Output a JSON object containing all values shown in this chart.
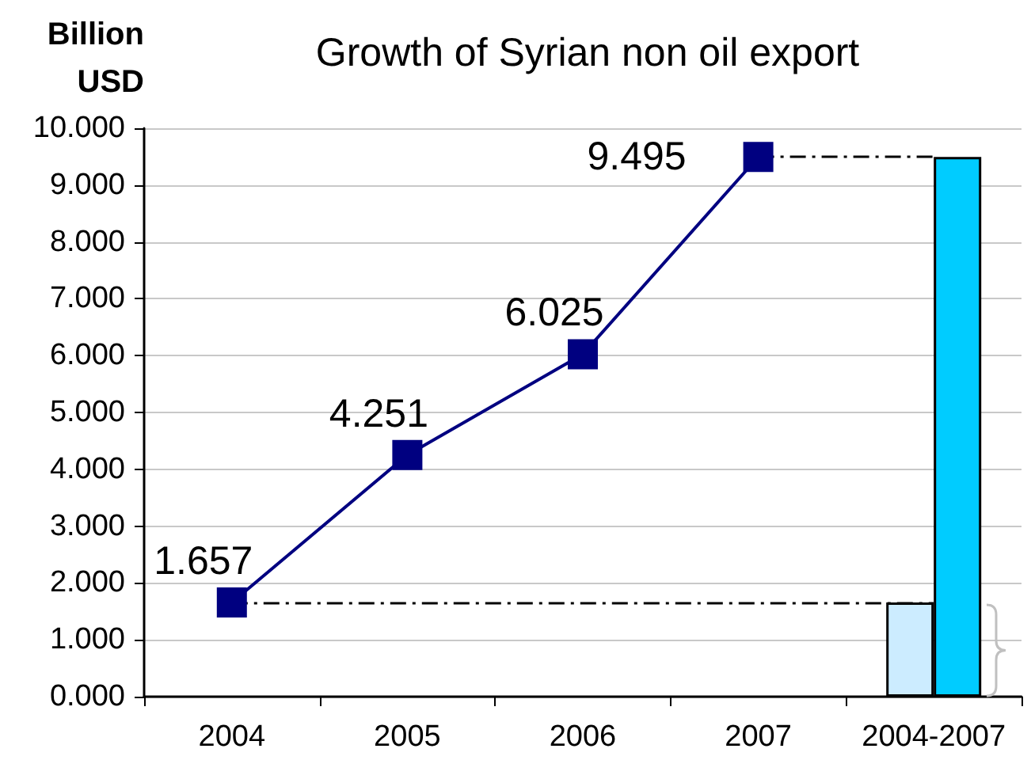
{
  "chart_data": {
    "type": "line",
    "title": "Growth of Syrian non oil export",
    "ylabel": "Billion USD",
    "categories": [
      "2004",
      "2005",
      "2006",
      "2007",
      "2004-2007"
    ],
    "series": [
      {
        "color": "#000080",
        "values": [
          1.657,
          4.251,
          6.025,
          9.495,
          null
        ],
        "value_labels": [
          "1.657",
          "4.251",
          "6.025",
          "9.495",
          null
        ]
      },
      {
        "type": "bar",
        "color": "#ccecff",
        "values": [
          null,
          null,
          null,
          null,
          1.657
        ]
      },
      {
        "type": "bar",
        "color": "#00ccff",
        "values": [
          null,
          null,
          null,
          null,
          9.495
        ]
      }
    ],
    "ylim": [
      0,
      10
    ],
    "yticks": [
      {
        "value": 0,
        "label": "0.000"
      },
      {
        "value": 1,
        "label": "1.000"
      },
      {
        "value": 2,
        "label": "2.000"
      },
      {
        "value": 3,
        "label": "3.000"
      },
      {
        "value": 4,
        "label": "4.000"
      },
      {
        "value": 5,
        "label": "5.000"
      },
      {
        "value": 6,
        "label": "6.000"
      },
      {
        "value": 7,
        "label": "7.000"
      },
      {
        "value": 8,
        "label": "8.000"
      },
      {
        "value": 9,
        "label": "9.000"
      },
      {
        "value": 10,
        "label": "10.000"
      }
    ],
    "grid": "y",
    "marker": "square",
    "ref_lines": [
      {
        "axis": "y",
        "value": 1.657,
        "color": "#000000",
        "line_style": "dashed"
      },
      {
        "axis": "y",
        "value": 9.495,
        "color": "#000000",
        "line_style": "dashed"
      }
    ]
  }
}
